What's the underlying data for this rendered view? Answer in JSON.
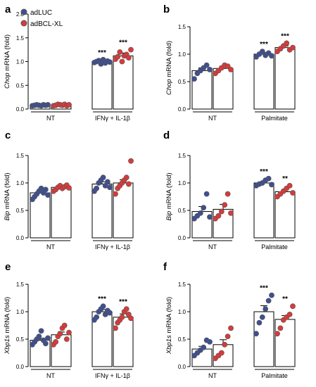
{
  "figure": {
    "legend": [
      {
        "label": "adLUC",
        "color": "#3f4f8f"
      },
      {
        "label": "adBCL-XL",
        "color": "#d83a3a"
      }
    ],
    "bar_fill": "#ffffff",
    "point_stroke": "#555555"
  },
  "chart_data": [
    {
      "type": "bar",
      "panel": "a",
      "ylabel_gene": "Chop",
      "ylabel_suffix": " mRNA (fold)",
      "ylim": [
        0,
        2.0
      ],
      "yticks": [
        "0.0",
        "0.5",
        "1.0",
        "1.5",
        "2.0"
      ],
      "groups": [
        "NT",
        "IFNγ + IL-1β"
      ],
      "series": [
        {
          "name": "adLUC",
          "bars": [
            0.08,
            1.0
          ],
          "errors": [
            0.01,
            0.03
          ],
          "points": [
            [
              0.07,
              0.08,
              0.09,
              0.08,
              0.07,
              0.09,
              0.08,
              0.09
            ],
            [
              0.98,
              1.0,
              1.02,
              0.95,
              1.04,
              0.97,
              1.01,
              0.99
            ]
          ]
        },
        {
          "name": "adBCL-XL",
          "bars": [
            0.09,
            1.12
          ],
          "errors": [
            0.01,
            0.06
          ],
          "points": [
            [
              0.07,
              0.08,
              0.1,
              0.09,
              0.08,
              0.1,
              0.07,
              0.09
            ],
            [
              1.05,
              1.1,
              1.2,
              1.0,
              1.12,
              1.15,
              1.08,
              1.25
            ]
          ]
        }
      ],
      "annotations": [
        {
          "group": 1,
          "series": 0,
          "text": "***"
        },
        {
          "group": 1,
          "series": 1,
          "text": "***"
        }
      ]
    },
    {
      "type": "bar",
      "panel": "b",
      "ylabel_gene": "Chop",
      "ylabel_suffix": " mRNA (fold)",
      "ylim": [
        0,
        1.5
      ],
      "yticks": [
        "0.0",
        "0.5",
        "1.0",
        "1.5"
      ],
      "groups": [
        "NT",
        "Palmitate"
      ],
      "series": [
        {
          "name": "adLUC",
          "bars": [
            0.7,
            1.0
          ],
          "errors": [
            0.05,
            0.03
          ],
          "points": [
            [
              0.55,
              0.65,
              0.7,
              0.75,
              0.8,
              0.72
            ],
            [
              0.95,
              1.0,
              1.05,
              0.98,
              1.02,
              0.97
            ]
          ]
        },
        {
          "name": "adBCL-XL",
          "bars": [
            0.74,
            1.12
          ],
          "errors": [
            0.04,
            0.03
          ],
          "points": [
            [
              0.65,
              0.7,
              0.75,
              0.8,
              0.78,
              0.72
            ],
            [
              1.05,
              1.1,
              1.15,
              1.2,
              1.08,
              1.12
            ]
          ]
        }
      ],
      "annotations": [
        {
          "group": 1,
          "series": 0,
          "text": "***"
        },
        {
          "group": 1,
          "series": 1,
          "text": "***"
        }
      ]
    },
    {
      "type": "bar",
      "panel": "c",
      "ylabel_gene": "Bip",
      "ylabel_suffix": " mRNA (fold)",
      "ylim": [
        0,
        1.5
      ],
      "yticks": [
        "0.0",
        "0.5",
        "1.0",
        "1.5"
      ],
      "groups": [
        "NT",
        "IFNγ + IL-1β"
      ],
      "series": [
        {
          "name": "adLUC",
          "bars": [
            0.82,
            0.98
          ],
          "errors": [
            0.04,
            0.04
          ],
          "points": [
            [
              0.7,
              0.75,
              0.8,
              0.85,
              0.9,
              0.82,
              0.88,
              0.78
            ],
            [
              0.85,
              0.9,
              1.0,
              1.05,
              1.1,
              0.95,
              1.02,
              0.92
            ]
          ]
        },
        {
          "name": "adBCL-XL",
          "bars": [
            0.92,
            1.0
          ],
          "errors": [
            0.02,
            0.06
          ],
          "points": [
            [
              0.85,
              0.88,
              0.92,
              0.95,
              0.9,
              0.93,
              0.96,
              0.91
            ],
            [
              0.8,
              0.9,
              0.95,
              1.0,
              1.05,
              1.1,
              0.98,
              1.4
            ]
          ]
        }
      ],
      "annotations": []
    },
    {
      "type": "bar",
      "panel": "d",
      "ylabel_gene": "Bip",
      "ylabel_suffix": " mRNA (fold)",
      "ylim": [
        0,
        1.5
      ],
      "yticks": [
        "0.0",
        "0.5",
        "1.0",
        "1.5"
      ],
      "groups": [
        "NT",
        "Palmitate"
      ],
      "series": [
        {
          "name": "adLUC",
          "bars": [
            0.48,
            1.0
          ],
          "errors": [
            0.09,
            0.03
          ],
          "points": [
            [
              0.35,
              0.4,
              0.45,
              0.55,
              0.8,
              0.38
            ],
            [
              0.95,
              0.98,
              1.0,
              1.05,
              1.08,
              0.97
            ]
          ]
        },
        {
          "name": "adBCL-XL",
          "bars": [
            0.52,
            0.84
          ],
          "errors": [
            0.09,
            0.04
          ],
          "points": [
            [
              0.35,
              0.4,
              0.48,
              0.6,
              0.8,
              0.45
            ],
            [
              0.75,
              0.8,
              0.85,
              0.9,
              0.95,
              0.82
            ]
          ]
        }
      ],
      "annotations": [
        {
          "group": 1,
          "series": 0,
          "text": "***"
        },
        {
          "group": 1,
          "series": 1,
          "text": "**"
        }
      ]
    },
    {
      "type": "bar",
      "panel": "e",
      "ylabel_gene": "Xbp1s",
      "ylabel_suffix": " mRNA (fold)",
      "ylim": [
        0,
        1.5
      ],
      "yticks": [
        "0.0",
        "0.5",
        "1.0",
        "1.5"
      ],
      "groups": [
        "NT",
        "IFNγ + IL-1β"
      ],
      "series": [
        {
          "name": "adLUC",
          "bars": [
            0.48,
            1.0
          ],
          "errors": [
            0.03,
            0.04
          ],
          "points": [
            [
              0.4,
              0.45,
              0.5,
              0.55,
              0.65,
              0.48,
              0.42,
              0.52
            ],
            [
              0.85,
              0.9,
              1.0,
              1.05,
              1.1,
              0.95,
              1.02,
              0.98
            ]
          ]
        },
        {
          "name": "adBCL-XL",
          "bars": [
            0.58,
            0.9
          ],
          "errors": [
            0.05,
            0.06
          ],
          "points": [
            [
              0.4,
              0.45,
              0.55,
              0.6,
              0.7,
              0.75,
              0.5,
              0.62
            ],
            [
              0.7,
              0.8,
              0.85,
              0.9,
              1.0,
              1.05,
              0.95,
              0.88
            ]
          ]
        }
      ],
      "annotations": [
        {
          "group": 1,
          "series": 0,
          "text": "***"
        },
        {
          "group": 1,
          "series": 1,
          "text": "***"
        }
      ]
    },
    {
      "type": "bar",
      "panel": "f",
      "ylabel_gene": "Xbp1s",
      "ylabel_suffix": " mRNA (fold)",
      "ylim": [
        0,
        1.5
      ],
      "yticks": [
        "0.0",
        "0.5",
        "1.0",
        "1.5"
      ],
      "groups": [
        "NT",
        "Palmitate"
      ],
      "series": [
        {
          "name": "adLUC",
          "bars": [
            0.32,
            1.0
          ],
          "errors": [
            0.05,
            0.11
          ],
          "points": [
            [
              0.2,
              0.25,
              0.3,
              0.35,
              0.48,
              0.45
            ],
            [
              0.6,
              0.8,
              0.9,
              1.05,
              1.2,
              1.3
            ]
          ]
        },
        {
          "name": "adBCL-XL",
          "bars": [
            0.4,
            0.86
          ],
          "errors": [
            0.09,
            0.07
          ],
          "points": [
            [
              0.15,
              0.2,
              0.25,
              0.4,
              0.55,
              0.7
            ],
            [
              0.6,
              0.7,
              0.85,
              0.9,
              0.95,
              1.1
            ]
          ]
        }
      ],
      "annotations": [
        {
          "group": 1,
          "series": 0,
          "text": "***"
        },
        {
          "group": 1,
          "series": 1,
          "text": "**"
        }
      ]
    }
  ]
}
